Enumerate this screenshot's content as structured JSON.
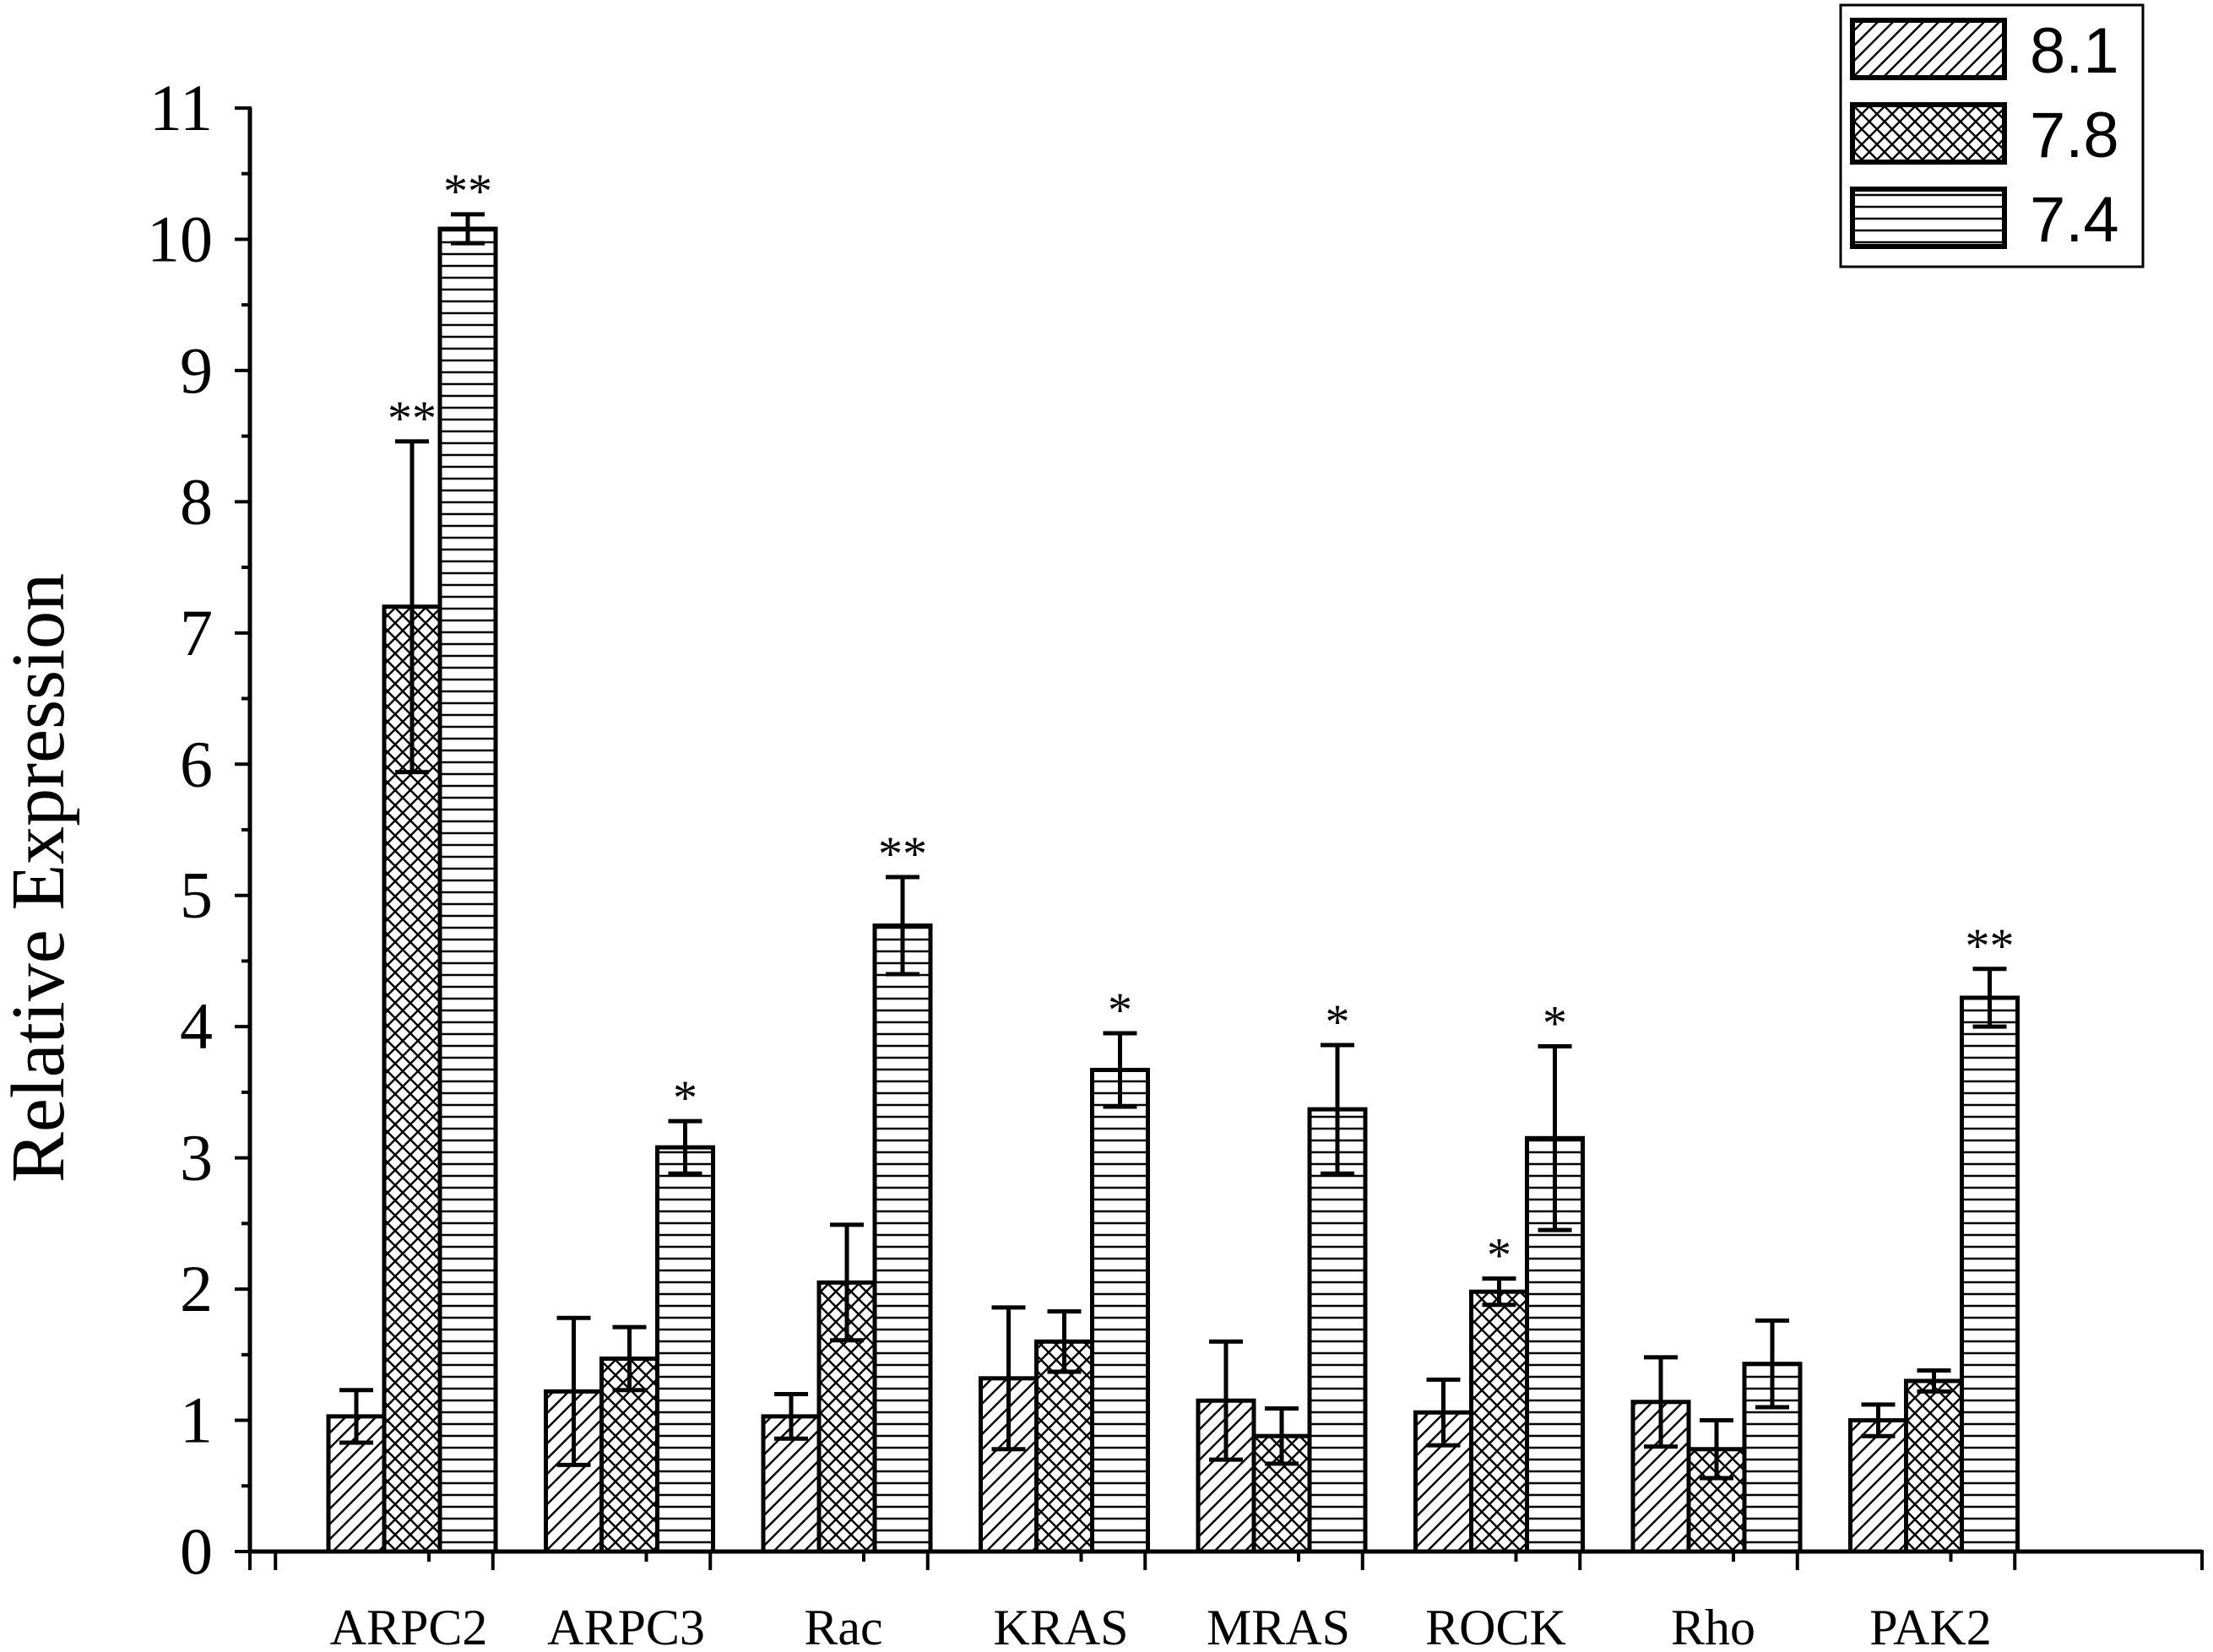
{
  "chart_data": {
    "type": "bar",
    "ylabel": "Relative Expression",
    "xlabel": "",
    "ylim": [
      0,
      11
    ],
    "yticks": [
      "0",
      "1",
      "2",
      "3",
      "4",
      "5",
      "6",
      "7",
      "8",
      "9",
      "10",
      "11"
    ],
    "categories": [
      "ARPC2",
      "ARPC3",
      "Rac",
      "KRAS",
      "MRAS",
      "ROCK",
      "Rho",
      "PAK2"
    ],
    "legend_position": "top-right",
    "series": [
      {
        "name": "8.1",
        "pattern": "diagonal-hatch",
        "values": [
          1.03,
          1.22,
          1.03,
          1.32,
          1.15,
          1.06,
          1.14,
          1.0
        ],
        "errors": [
          0.2,
          0.56,
          0.17,
          0.54,
          0.45,
          0.25,
          0.34,
          0.12
        ],
        "significance": [
          "",
          "",
          "",
          "",
          "",
          "",
          "",
          ""
        ]
      },
      {
        "name": "7.8",
        "pattern": "cross-hatch",
        "values": [
          7.2,
          1.47,
          2.05,
          1.6,
          0.88,
          1.98,
          0.78,
          1.3
        ],
        "errors": [
          1.26,
          0.24,
          0.44,
          0.23,
          0.21,
          0.1,
          0.22,
          0.08
        ],
        "significance": [
          "**",
          "",
          "",
          "",
          "",
          "*",
          "",
          ""
        ]
      },
      {
        "name": "7.4",
        "pattern": "horizontal-lines",
        "values": [
          10.08,
          3.08,
          4.77,
          3.67,
          3.37,
          3.15,
          1.43,
          4.22
        ],
        "errors": [
          0.11,
          0.2,
          0.37,
          0.28,
          0.49,
          0.7,
          0.33,
          0.22
        ],
        "significance": [
          "**",
          "*",
          "**",
          "*",
          "*",
          "*",
          "",
          "**"
        ]
      }
    ]
  }
}
